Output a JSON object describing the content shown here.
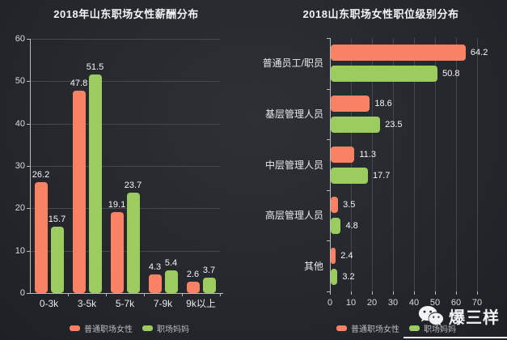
{
  "colors": {
    "orange": "#fa8264",
    "green": "#9ccb60",
    "background": "#24272b",
    "grid": "#45484d",
    "axis": "#b8babc",
    "title_text": "#f2f3f5",
    "value_text": "#f5f6f7"
  },
  "watermark": {
    "brand": "爆三样",
    "icon": "wechat-icon"
  },
  "chart_data": [
    {
      "type": "bar",
      "orientation": "vertical",
      "title": "2018年山东职场女性薪酬分布",
      "categories": [
        "0-3k",
        "3-5k",
        "5-7k",
        "7-9k",
        "9k以上"
      ],
      "series": [
        {
          "name": "普通职场女性",
          "color": "#fa8264",
          "values": [
            26.2,
            47.8,
            19.1,
            4.3,
            2.6
          ]
        },
        {
          "name": "职场妈妈",
          "color": "#9ccb60",
          "values": [
            15.7,
            51.5,
            23.7,
            5.4,
            3.7
          ]
        }
      ],
      "ylim": [
        0,
        60
      ],
      "yticks": [
        0,
        10,
        20,
        30,
        40,
        50,
        60
      ],
      "grid": true,
      "legend_position": "bottom"
    },
    {
      "type": "bar",
      "orientation": "horizontal",
      "title": "2018山东职场女性职位级别分布",
      "categories": [
        "普通员工/职员",
        "基层管理人员",
        "中层管理人员",
        "高层管理人员",
        "其他"
      ],
      "series": [
        {
          "name": "普通职场女性",
          "color": "#fa8264",
          "values": [
            64.2,
            18.6,
            11.3,
            3.5,
            2.4
          ]
        },
        {
          "name": "职场妈妈",
          "color": "#9ccb60",
          "values": [
            50.8,
            23.5,
            17.7,
            4.8,
            3.2
          ]
        }
      ],
      "xlim": [
        0,
        70
      ],
      "xticks": [
        0,
        10,
        20,
        30,
        40,
        50,
        60,
        70
      ],
      "grid": true,
      "legend_position": "bottom"
    }
  ]
}
